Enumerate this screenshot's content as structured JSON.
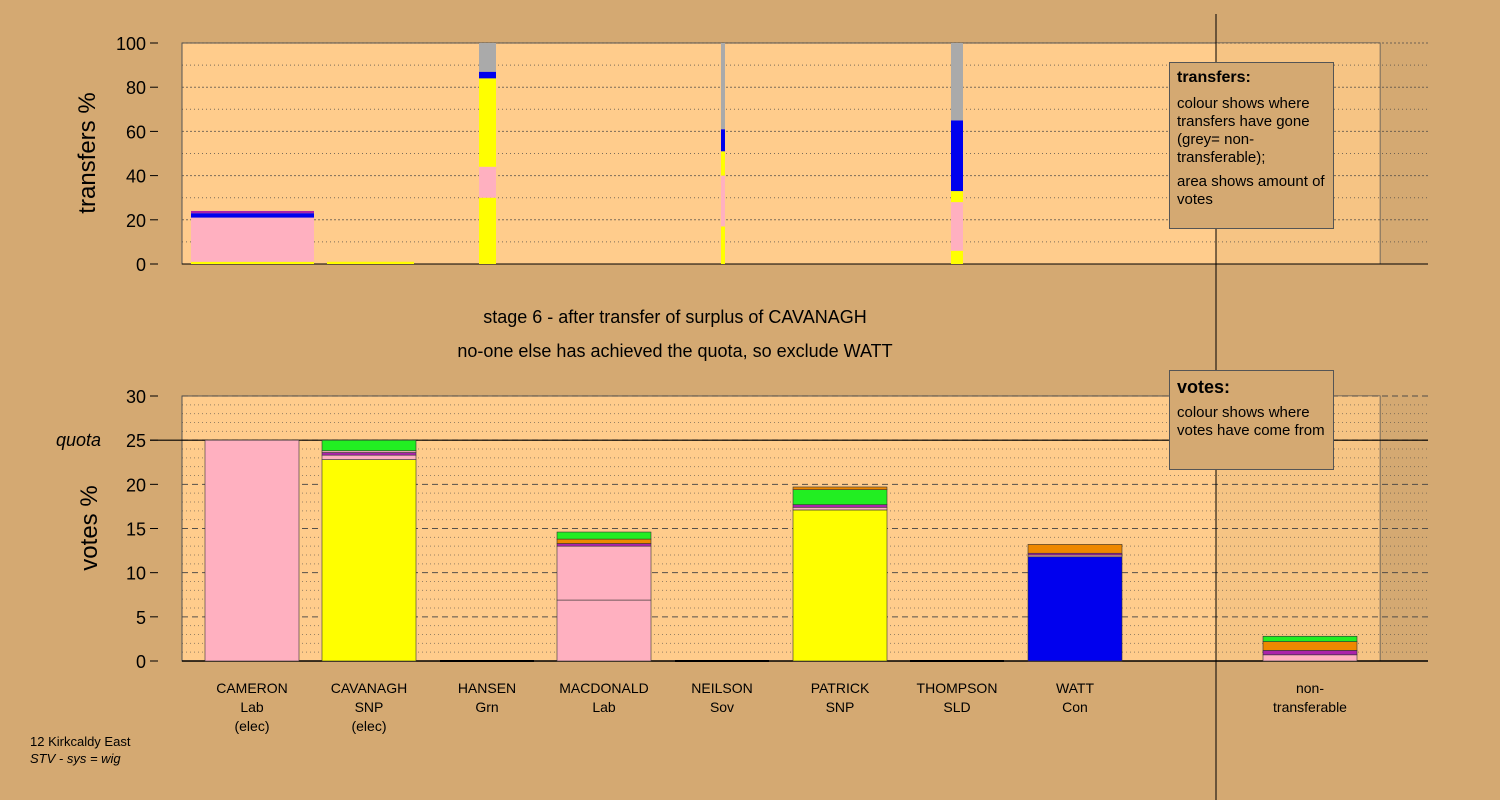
{
  "stage_title": "stage 6 - after transfer of surplus of CAVANAGH",
  "stage_subtitle": "no-one else has achieved the quota, so exclude WATT",
  "footer": {
    "line1": "12 Kirkcaldy East",
    "line2": "STV - sys = wig"
  },
  "legend_transfers": {
    "title": "transfers:",
    "p1": "colour shows where transfers have gone (grey= non-transferable);",
    "p2": "area shows amount of votes"
  },
  "legend_votes": {
    "title": "votes:",
    "p1": "colour shows where votes have come from"
  },
  "quota_label": "quota",
  "colors": {
    "Lab": "#ffb0c0",
    "SNP": "#ffff00",
    "Grn": "#22ee22",
    "Con": "#0000ee",
    "Sov": "#ee8800",
    "SLD": "#aa22aa",
    "nontransferable": "#aaaaaa",
    "background": "#d4a972",
    "plot": "#ffcc8c"
  },
  "chart_data": [
    {
      "type": "bar",
      "subtype": "stacked-variable-width",
      "ylabel": "transfers %",
      "ylim": [
        0,
        100
      ],
      "yticks": [
        0,
        20,
        40,
        60,
        80,
        100
      ],
      "grid": true,
      "bars": [
        {
          "candidate": "CAMERON",
          "width_share": 0.0,
          "segments": [
            {
              "party": "SNP",
              "from": 0,
              "to": 1
            },
            {
              "party": "Lab",
              "from": 1,
              "to": 21
            },
            {
              "party": "Con",
              "from": 21,
              "to": 23
            },
            {
              "party": "SLD",
              "from": 23,
              "to": 24
            }
          ]
        },
        {
          "candidate": "CAVANAGH",
          "segments": [
            {
              "party": "SNP",
              "from": 0,
              "to": 1
            }
          ]
        },
        {
          "candidate": "HANSEN",
          "segments": [
            {
              "party": "SNP",
              "from": 0,
              "to": 30
            },
            {
              "party": "Lab",
              "from": 30,
              "to": 44
            },
            {
              "party": "SNP",
              "from": 44,
              "to": 84
            },
            {
              "party": "Con",
              "from": 84,
              "to": 87
            },
            {
              "party": "nontransferable",
              "from": 87,
              "to": 100
            }
          ]
        },
        {
          "candidate": "NEILSON",
          "segments": [
            {
              "party": "SNP",
              "from": 0,
              "to": 17
            },
            {
              "party": "Lab",
              "from": 17,
              "to": 40
            },
            {
              "party": "SNP",
              "from": 40,
              "to": 51
            },
            {
              "party": "Con",
              "from": 51,
              "to": 61
            },
            {
              "party": "nontransferable",
              "from": 61,
              "to": 100
            }
          ]
        },
        {
          "candidate": "THOMPSON",
          "segments": [
            {
              "party": "SNP",
              "from": 0,
              "to": 6
            },
            {
              "party": "Lab",
              "from": 6,
              "to": 28
            },
            {
              "party": "SNP",
              "from": 28,
              "to": 33
            },
            {
              "party": "Con",
              "from": 33,
              "to": 65
            },
            {
              "party": "nontransferable",
              "from": 65,
              "to": 100
            }
          ]
        }
      ]
    },
    {
      "type": "bar",
      "subtype": "stacked",
      "ylabel": "votes %",
      "ylim": [
        0,
        30
      ],
      "yticks": [
        0,
        5,
        10,
        15,
        20,
        25,
        30
      ],
      "quota": 25,
      "grid": true,
      "categories": [
        {
          "name": "CAMERON",
          "party": "Lab",
          "note": "(elec)"
        },
        {
          "name": "CAVANAGH",
          "party": "SNP",
          "note": "(elec)"
        },
        {
          "name": "HANSEN",
          "party": "Grn",
          "note": ""
        },
        {
          "name": "MACDONALD",
          "party": "Lab",
          "note": ""
        },
        {
          "name": "NEILSON",
          "party": "Sov",
          "note": ""
        },
        {
          "name": "PATRICK",
          "party": "SNP",
          "note": ""
        },
        {
          "name": "THOMPSON",
          "party": "SLD",
          "note": ""
        },
        {
          "name": "WATT",
          "party": "Con",
          "note": ""
        },
        {
          "name": "non-",
          "party": "transferable",
          "note": ""
        }
      ],
      "stacks": [
        [
          {
            "party": "Lab",
            "from": 0,
            "to": 25
          }
        ],
        [
          {
            "party": "SNP",
            "from": 0,
            "to": 22.8
          },
          {
            "party": "Lab",
            "from": 22.8,
            "to": 23.3
          },
          {
            "party": "SLD",
            "from": 23.3,
            "to": 23.6
          },
          {
            "party": "Lab",
            "from": 23.6,
            "to": 23.8
          },
          {
            "party": "Grn",
            "from": 23.8,
            "to": 25
          }
        ],
        [],
        [
          {
            "party": "Lab",
            "from": 0,
            "to": 6.9
          },
          {
            "party": "Lab",
            "from": 6.9,
            "to": 13
          },
          {
            "party": "SLD",
            "from": 13,
            "to": 13.3
          },
          {
            "party": "Sov",
            "from": 13.3,
            "to": 13.8
          },
          {
            "party": "Grn",
            "from": 13.8,
            "to": 14.6
          }
        ],
        [],
        [
          {
            "party": "SNP",
            "from": 0,
            "to": 17.1
          },
          {
            "party": "Lab",
            "from": 17.1,
            "to": 17.4
          },
          {
            "party": "SLD",
            "from": 17.4,
            "to": 17.7
          },
          {
            "party": "Grn",
            "from": 17.7,
            "to": 19.4
          },
          {
            "party": "Sov",
            "from": 19.4,
            "to": 19.7
          }
        ],
        [],
        [
          {
            "party": "Con",
            "from": 0,
            "to": 11.8
          },
          {
            "party": "Lab",
            "from": 11.8,
            "to": 12.0
          },
          {
            "party": "SLD",
            "from": 12.0,
            "to": 12.2
          },
          {
            "party": "Sov",
            "from": 12.2,
            "to": 13.2
          }
        ],
        [
          {
            "party": "Lab",
            "from": 0,
            "to": 0.7
          },
          {
            "party": "SLD",
            "from": 0.7,
            "to": 1.2
          },
          {
            "party": "Sov",
            "from": 1.2,
            "to": 2.2
          },
          {
            "party": "Grn",
            "from": 2.2,
            "to": 2.8
          }
        ]
      ]
    }
  ]
}
